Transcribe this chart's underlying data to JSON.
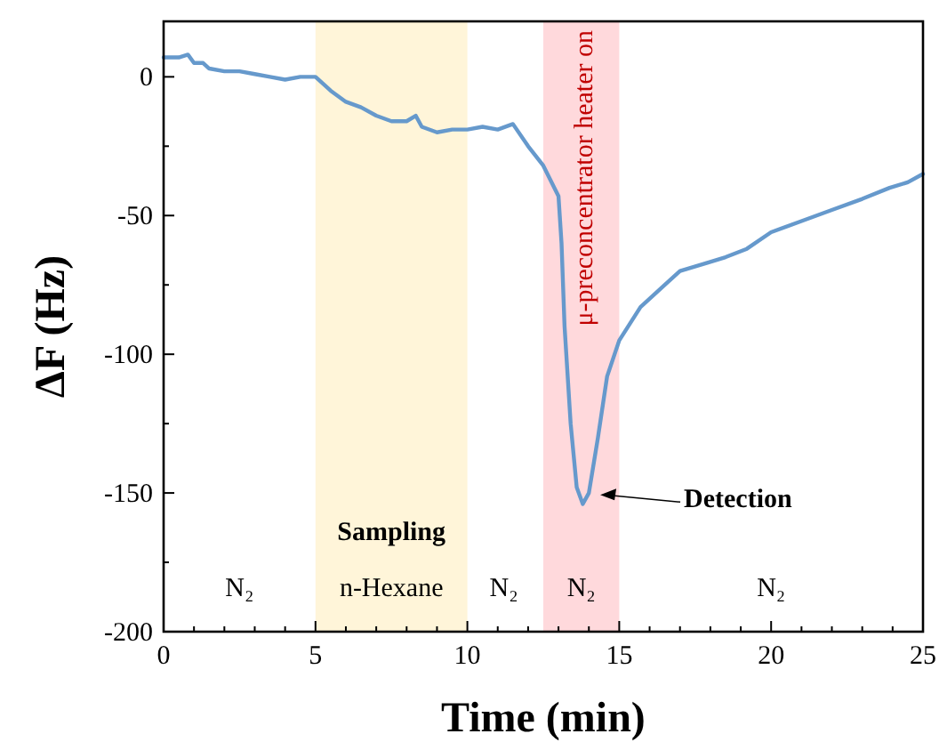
{
  "chart_data": {
    "type": "line",
    "xlabel": "Time (min)",
    "ylabel": "ΔF (Hz)",
    "xlim": [
      0,
      25
    ],
    "ylim": [
      -200,
      20
    ],
    "xticks": [
      0,
      {
        "value": 1,
        "label": null
      },
      {
        "value": 2,
        "label": null
      },
      {
        "value": 3,
        "label": null
      },
      {
        "value": 4,
        "label": null
      },
      5,
      {
        "value": 6,
        "label": null
      },
      {
        "value": 7,
        "label": null
      },
      {
        "value": 8,
        "label": null
      },
      {
        "value": 9,
        "label": null
      },
      10,
      {
        "value": 11,
        "label": null
      },
      {
        "value": 12,
        "label": null
      },
      {
        "value": 13,
        "label": null
      },
      {
        "value": 14,
        "label": null
      },
      15,
      {
        "value": 16,
        "label": null
      },
      {
        "value": 17,
        "label": null
      },
      {
        "value": 18,
        "label": null
      },
      {
        "value": 19,
        "label": null
      },
      20,
      {
        "value": 21,
        "label": null
      },
      {
        "value": 22,
        "label": null
      },
      {
        "value": 23,
        "label": null
      },
      {
        "value": 24,
        "label": null
      },
      25
    ],
    "yticks": [
      -200,
      {
        "value": -175,
        "label": null
      },
      -150,
      {
        "value": -125,
        "label": null
      },
      -100,
      {
        "value": -75,
        "label": null
      },
      -50,
      {
        "value": -25,
        "label": null
      },
      0
    ],
    "grid": false,
    "marker": "none",
    "line_style": "solid",
    "series": [
      {
        "color": "#6699cc",
        "x": [
          0,
          0.5,
          0.8,
          1,
          1.3,
          1.5,
          2,
          2.5,
          3,
          3.5,
          4,
          4.5,
          5,
          5.5,
          6,
          6.5,
          7,
          7.5,
          8,
          8.3,
          8.5,
          9,
          9.5,
          10,
          10.5,
          11,
          11.5,
          12,
          12.5,
          13,
          13.1,
          13.2,
          13.4,
          13.6,
          13.8,
          14,
          14.3,
          14.6,
          15,
          15.7,
          16.5,
          17,
          17.9,
          18.5,
          19.2,
          20,
          21,
          22,
          23,
          23.9,
          24.5,
          25
        ],
        "values": [
          7,
          7,
          8,
          5,
          5,
          3,
          2,
          2,
          1,
          0,
          -1,
          0,
          0,
          -5,
          -9,
          -11,
          -14,
          -16,
          -16,
          -14,
          -18,
          -20,
          -19,
          -19,
          -18,
          -19,
          -17,
          -25,
          -32,
          -43,
          -60,
          -90,
          -125,
          -148,
          -154,
          -150,
          -130,
          -108,
          -95,
          -83,
          -75,
          -70,
          -67,
          -65,
          -62,
          -56,
          -52,
          -48,
          -44,
          -40,
          -38,
          -35
        ]
      }
    ],
    "bands": [
      {
        "axis": "x",
        "from": 5,
        "to": 10,
        "color": "#fff5d9"
      },
      {
        "axis": "x",
        "from": 12.5,
        "to": 15,
        "color": "#ffd9dc",
        "label": "μ-preconcentrator heater on"
      }
    ],
    "annotations": [
      "Sampling",
      {
        "text": "Detection",
        "x": 14.2,
        "y": -152
      },
      "N₂",
      "n-Hexane",
      "N₂",
      "N₂",
      "N₂"
    ]
  }
}
